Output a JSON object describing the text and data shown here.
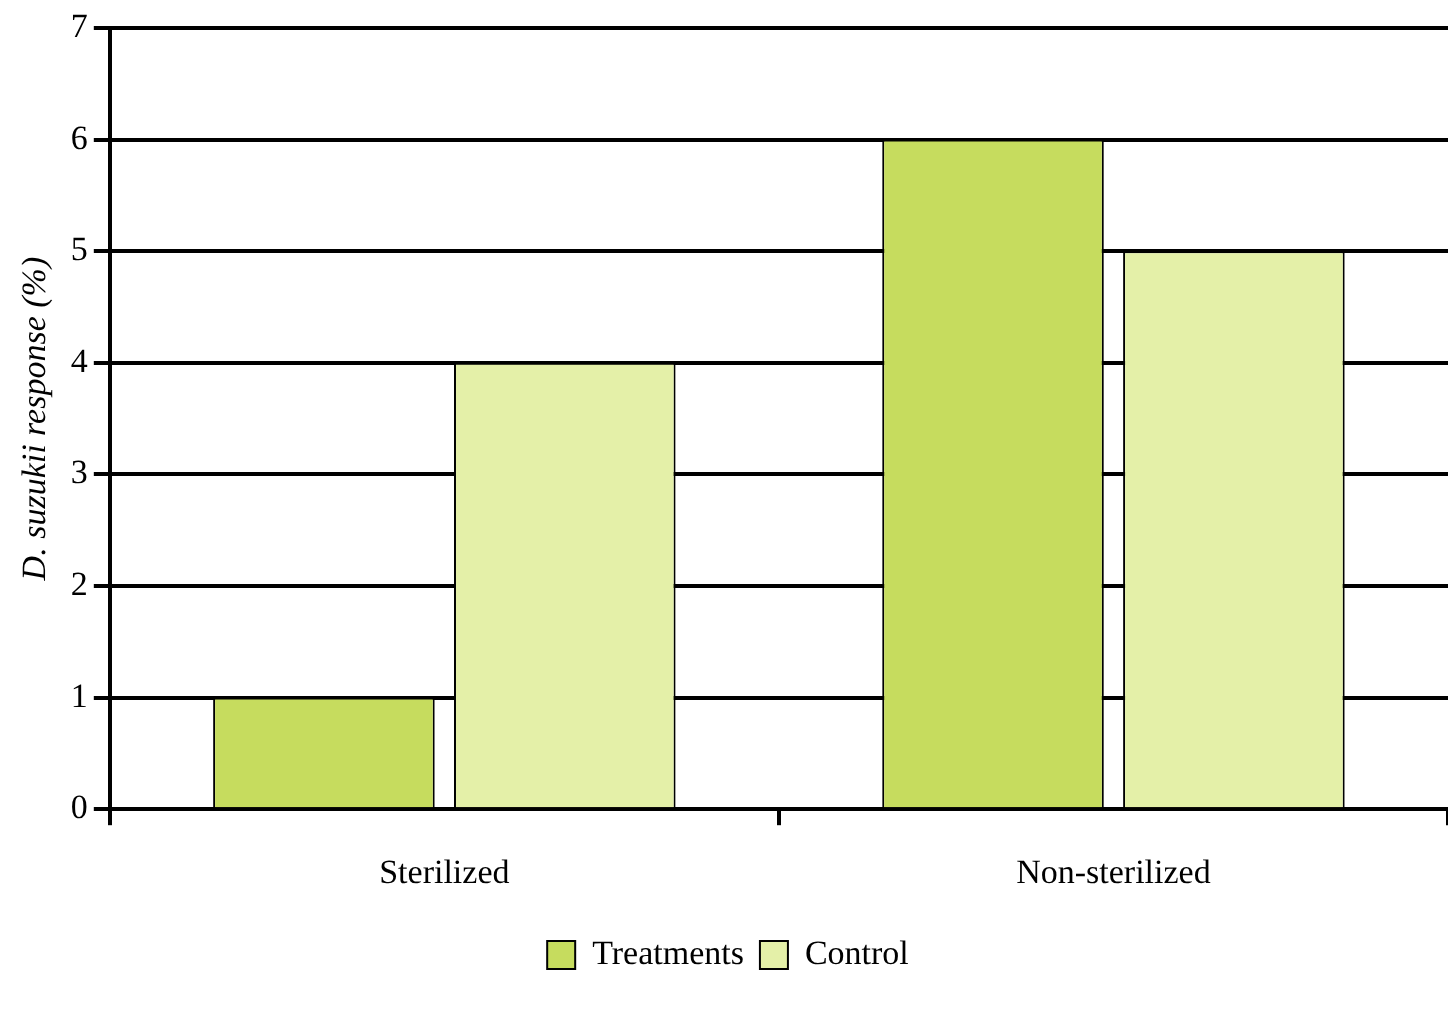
{
  "chart_data": {
    "type": "bar",
    "ylabel": "D. suzukii response (%)",
    "categories": [
      "Sterilized",
      "Non-sterilized"
    ],
    "series": [
      {
        "name": "Treatments",
        "color": "#c6dc5e",
        "values": [
          1,
          6
        ]
      },
      {
        "name": "Control",
        "color": "#e4f0a8",
        "values": [
          4,
          5
        ]
      }
    ],
    "ylim": [
      0,
      7
    ],
    "yticks": [
      0,
      1,
      2,
      3,
      4,
      5,
      6,
      7
    ],
    "grid": "y",
    "legend": "bottom"
  }
}
